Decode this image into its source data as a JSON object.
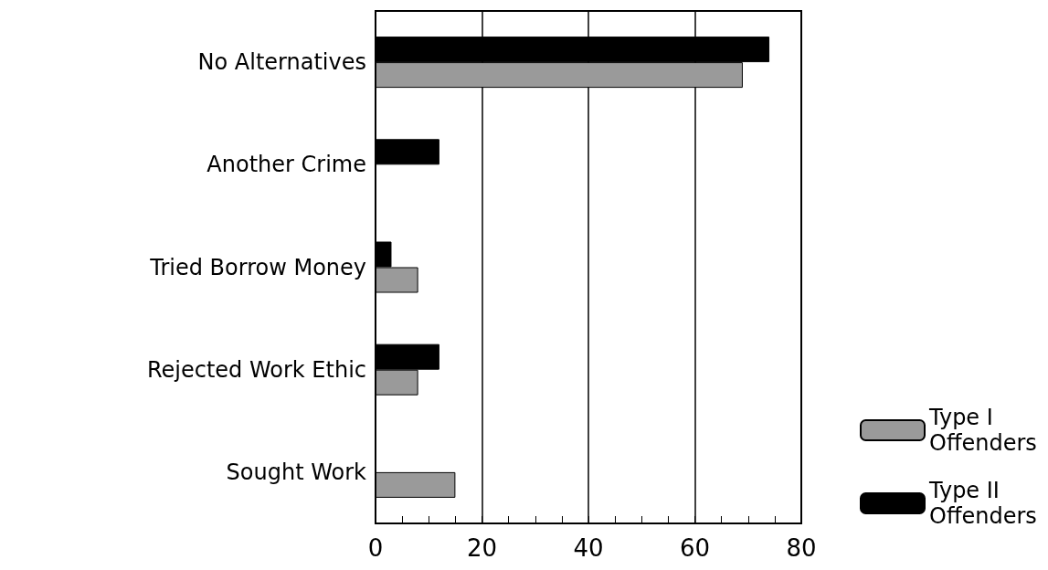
{
  "chart_data": {
    "type": "bar",
    "orientation": "horizontal",
    "categories": [
      "No Alternatives",
      "Another Crime",
      "Tried Borrow Money",
      "Rejected Work Ethic",
      "Sought Work"
    ],
    "series": [
      {
        "name": "Type I Offenders",
        "color": "#9a9a9a",
        "values": [
          69,
          null,
          8,
          8,
          15
        ]
      },
      {
        "name": "Type II Offenders",
        "color": "#000000",
        "values": [
          74,
          12,
          3,
          12,
          null
        ]
      }
    ],
    "xlim": [
      0,
      80
    ],
    "xticks": [
      0,
      20,
      40,
      60,
      80
    ],
    "grid": "x",
    "legend": "bottom right"
  }
}
